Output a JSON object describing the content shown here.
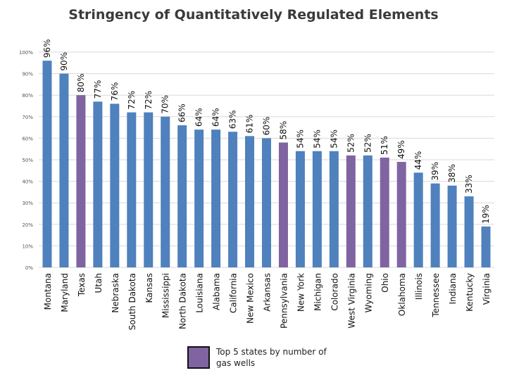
{
  "chart_data": {
    "type": "bar",
    "title": "Stringency of Quantitatively Regulated Elements",
    "categories": [
      "Montana",
      "Maryland",
      "Texas",
      "Utah",
      "Nebraska",
      "South Dakota",
      "Kansas",
      "Mississippi",
      "North Dakota",
      "Louisiana",
      "Alabama",
      "California",
      "New Mexico",
      "Arkansas",
      "Pennsylvania",
      "New York",
      "Michigan",
      "Colorado",
      "West Virginia",
      "Wyoming",
      "Ohio",
      "Oklahoma",
      "Illinois",
      "Tennessee",
      "Indiana",
      "Kentucky",
      "Virginia"
    ],
    "values": [
      96,
      90,
      80,
      77,
      76,
      72,
      72,
      70,
      66,
      64,
      64,
      63,
      61,
      60,
      58,
      54,
      54,
      54,
      52,
      52,
      51,
      49,
      44,
      39,
      38,
      33,
      19
    ],
    "data_labels": [
      "96%",
      "90%",
      "80%",
      "77%",
      "76%",
      "72%",
      "72%",
      "70%",
      "66%",
      "64%",
      "64%",
      "63%",
      "61%",
      "60%",
      "58%",
      "54%",
      "54%",
      "54%",
      "52%",
      "52%",
      "51%",
      "49%",
      "44%",
      "39%",
      "38%",
      "33%",
      "19%"
    ],
    "highlighted": [
      "Texas",
      "Pennsylvania",
      "West Virginia",
      "Ohio",
      "Oklahoma"
    ],
    "yticks": [
      0,
      10,
      20,
      30,
      40,
      50,
      60,
      70,
      80,
      90,
      100
    ],
    "ytick_labels": [
      "0%",
      "10%",
      "20%",
      "30%",
      "40%",
      "50%",
      "60%",
      "70%",
      "80%",
      "90%",
      "100%"
    ],
    "ylim": [
      0,
      100
    ],
    "grid": true,
    "legend": {
      "label": "Top 5 states by number of gas wells",
      "position": "bottom"
    },
    "colors": {
      "bar": "#4f81bd",
      "highlight": "#8064a2",
      "grid": "#d9d9d9"
    }
  }
}
